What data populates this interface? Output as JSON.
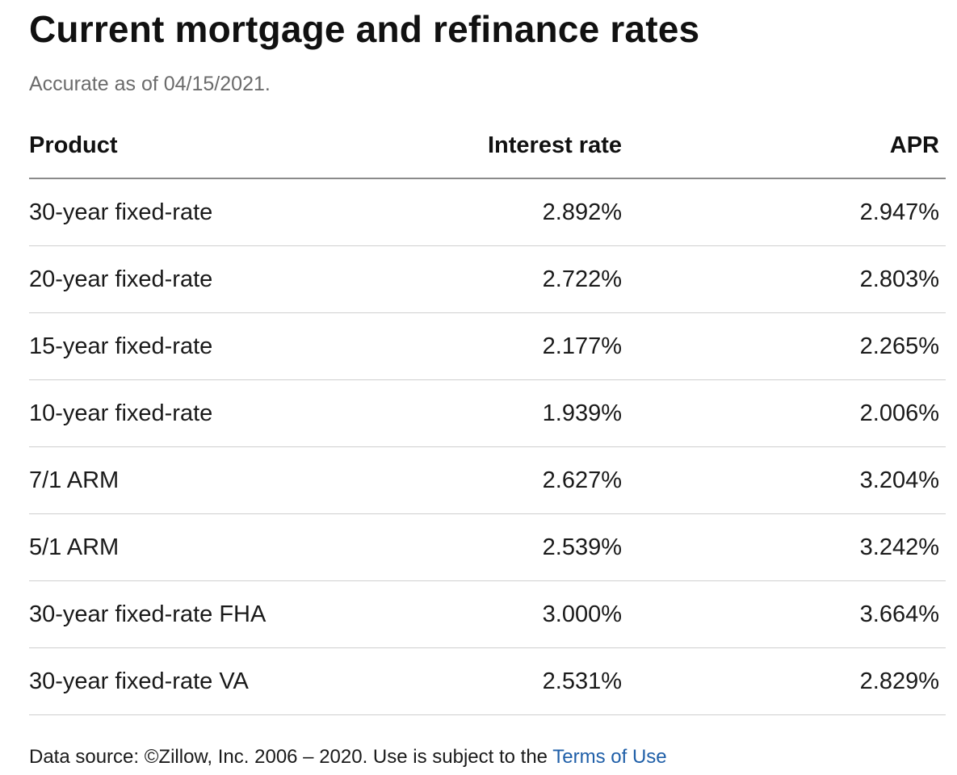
{
  "page": {
    "title": "Current mortgage and refinance rates",
    "subtitle": "Accurate as of 04/15/2021."
  },
  "table": {
    "headers": {
      "product": "Product",
      "interest_rate": "Interest rate",
      "apr": "APR"
    },
    "rows": [
      {
        "product": "30-year fixed-rate",
        "interest_rate": "2.892%",
        "apr": "2.947%"
      },
      {
        "product": "20-year fixed-rate",
        "interest_rate": "2.722%",
        "apr": "2.803%"
      },
      {
        "product": "15-year fixed-rate",
        "interest_rate": "2.177%",
        "apr": "2.265%"
      },
      {
        "product": "10-year fixed-rate",
        "interest_rate": "1.939%",
        "apr": "2.006%"
      },
      {
        "product": "7/1 ARM",
        "interest_rate": "2.627%",
        "apr": "3.204%"
      },
      {
        "product": "5/1 ARM",
        "interest_rate": "2.539%",
        "apr": "3.242%"
      },
      {
        "product": "30-year fixed-rate FHA",
        "interest_rate": "3.000%",
        "apr": "3.664%"
      },
      {
        "product": "30-year fixed-rate VA",
        "interest_rate": "2.531%",
        "apr": "2.829%"
      }
    ]
  },
  "footer": {
    "text": "Data source: ©Zillow, Inc. 2006 – 2020. Use is subject to the ",
    "link_label": "Terms of Use",
    "link_color": "#1f5fa8"
  }
}
